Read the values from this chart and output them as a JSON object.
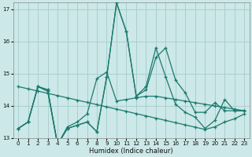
{
  "xlabel": "Humidex (Indice chaleur)",
  "bg_color": "#cce8e8",
  "grid_color": "#aacfcf",
  "line_color": "#1a7a6e",
  "xlim": [
    -0.5,
    23.5
  ],
  "ylim": [
    13.0,
    17.2
  ],
  "yticks": [
    13,
    14,
    15,
    16,
    17
  ],
  "xticks": [
    0,
    1,
    2,
    3,
    4,
    5,
    6,
    7,
    8,
    9,
    10,
    11,
    12,
    13,
    14,
    15,
    16,
    17,
    18,
    19,
    20,
    21,
    22,
    23
  ],
  "s1_y": [
    13.3,
    13.5,
    14.6,
    14.5,
    12.8,
    13.3,
    13.4,
    13.5,
    13.2,
    14.9,
    17.2,
    16.3,
    14.3,
    14.5,
    15.5,
    15.8,
    14.8,
    14.4,
    13.8,
    13.8,
    14.1,
    13.85,
    13.85,
    13.85
  ],
  "s2_y": [
    13.3,
    13.5,
    14.6,
    14.5,
    12.8,
    13.3,
    13.4,
    13.5,
    13.2,
    14.9,
    17.2,
    16.3,
    14.3,
    14.6,
    15.8,
    14.9,
    14.05,
    13.8,
    13.65,
    13.3,
    13.55,
    14.2,
    13.85,
    13.85
  ],
  "s3_y": [
    13.3,
    13.5,
    14.6,
    14.45,
    12.8,
    13.35,
    13.5,
    13.75,
    14.85,
    15.05,
    14.15,
    14.2,
    14.25,
    14.3,
    14.3,
    14.25,
    14.2,
    14.15,
    14.1,
    14.05,
    14.0,
    13.95,
    13.9,
    13.85
  ],
  "s4_y": [
    14.6,
    14.53,
    14.46,
    14.39,
    14.32,
    14.25,
    14.18,
    14.11,
    14.04,
    13.97,
    13.9,
    13.83,
    13.76,
    13.69,
    13.62,
    13.55,
    13.48,
    13.41,
    13.34,
    13.27,
    13.35,
    13.5,
    13.6,
    13.75
  ]
}
